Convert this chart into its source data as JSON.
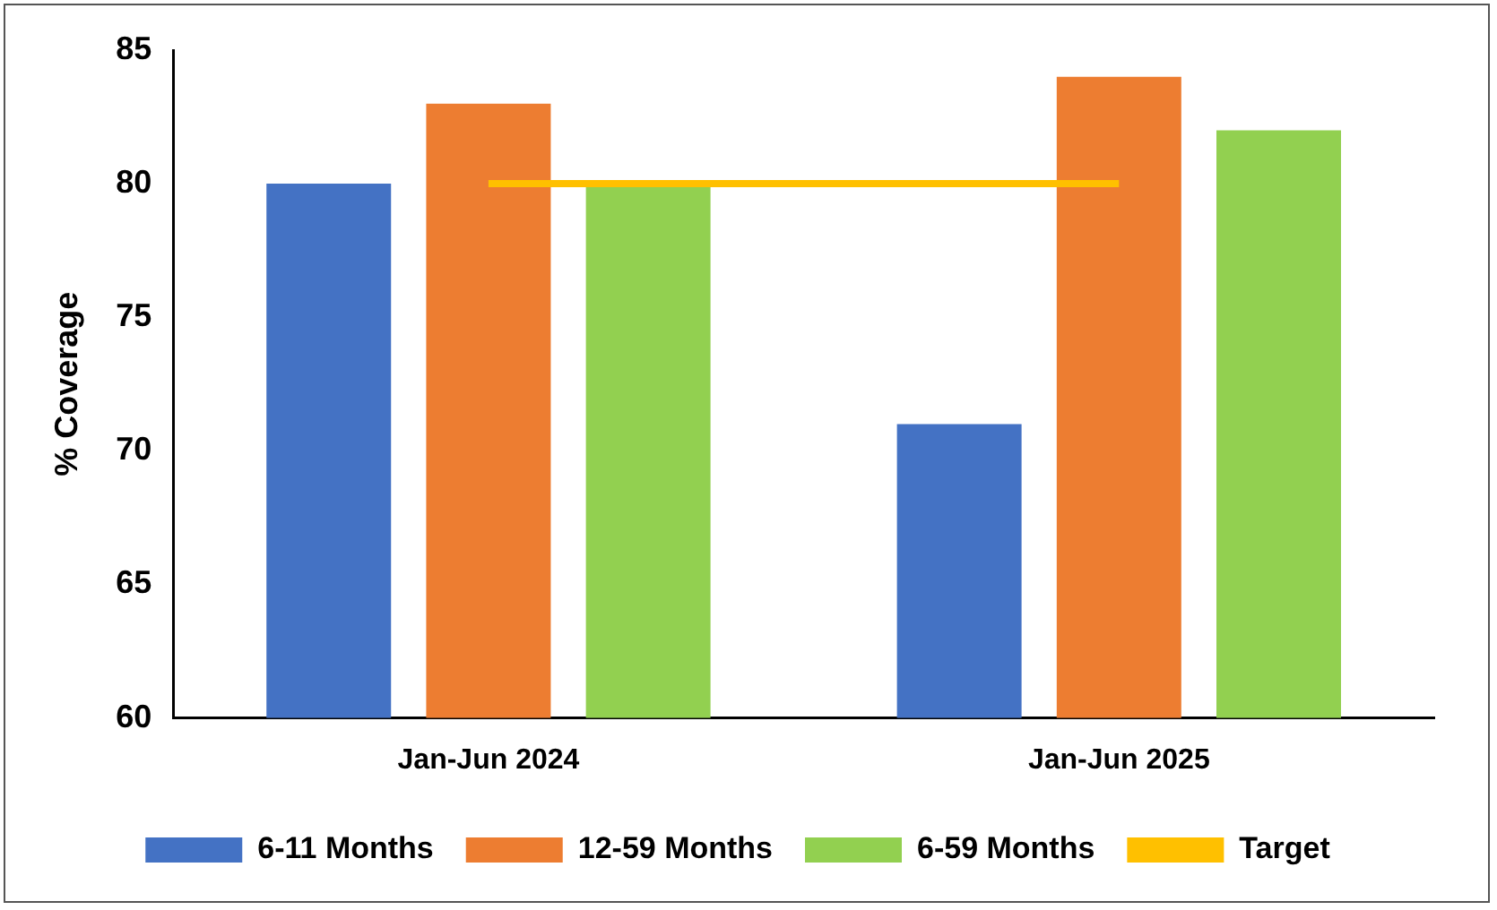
{
  "chart_data": {
    "type": "bar",
    "ylabel": "% Coverage",
    "categories": [
      "Jan-Jun 2024",
      "Jan-Jun 2025"
    ],
    "series": [
      {
        "name": "6-11 Months",
        "color": "#4472c4",
        "values": [
          80,
          71
        ]
      },
      {
        "name": "12-59 Months",
        "color": "#ed7d31",
        "values": [
          83,
          84
        ]
      },
      {
        "name": "6-59 Months",
        "color": "#92d050",
        "values": [
          80,
          82
        ]
      },
      {
        "name": "Target",
        "type": "line",
        "color": "#ffc000",
        "values": [
          80,
          80
        ]
      }
    ],
    "ylim": [
      60,
      85
    ],
    "yticks": [
      60,
      65,
      70,
      75,
      80,
      85
    ],
    "grid": false,
    "legend": "bottom"
  }
}
